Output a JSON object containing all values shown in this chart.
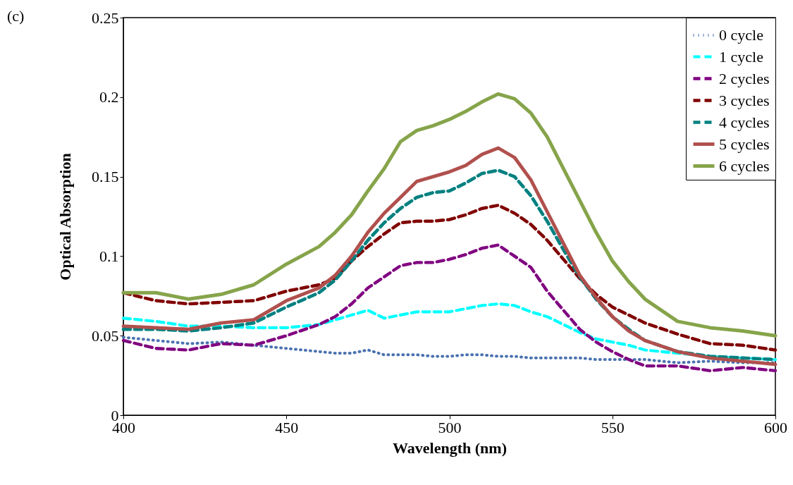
{
  "chart_data": {
    "type": "line",
    "xlabel": "Wavelength (nm)",
    "ylabel": "Optical Absorption",
    "annotations": [
      "(c)"
    ],
    "x": [
      400,
      410,
      420,
      430,
      440,
      450,
      460,
      465,
      470,
      475,
      480,
      485,
      490,
      495,
      500,
      505,
      510,
      515,
      520,
      525,
      530,
      535,
      540,
      545,
      550,
      555,
      560,
      570,
      580,
      590,
      600
    ],
    "series": [
      {
        "name": "0 cycle",
        "color": "#4a72b0",
        "line_style": "dotted",
        "values": [
          0.049,
          0.047,
          0.045,
          0.046,
          0.044,
          0.042,
          0.04,
          0.039,
          0.039,
          0.041,
          0.038,
          0.038,
          0.038,
          0.037,
          0.037,
          0.038,
          0.038,
          0.037,
          0.037,
          0.036,
          0.036,
          0.036,
          0.036,
          0.035,
          0.035,
          0.035,
          0.035,
          0.033,
          0.034,
          0.033,
          0.033
        ]
      },
      {
        "name": "1 cycle",
        "color": "#00ffff",
        "line_style": "dashed",
        "values": [
          0.061,
          0.059,
          0.056,
          0.056,
          0.055,
          0.055,
          0.057,
          0.06,
          0.063,
          0.066,
          0.061,
          0.063,
          0.065,
          0.065,
          0.065,
          0.067,
          0.069,
          0.07,
          0.069,
          0.065,
          0.062,
          0.057,
          0.052,
          0.048,
          0.046,
          0.044,
          0.041,
          0.039,
          0.037,
          0.036,
          0.035
        ]
      },
      {
        "name": "2 cycles",
        "color": "#800080",
        "line_style": "dashed",
        "values": [
          0.047,
          0.042,
          0.041,
          0.045,
          0.044,
          0.05,
          0.057,
          0.062,
          0.07,
          0.08,
          0.087,
          0.094,
          0.096,
          0.096,
          0.098,
          0.101,
          0.105,
          0.107,
          0.1,
          0.093,
          0.078,
          0.066,
          0.054,
          0.046,
          0.04,
          0.035,
          0.031,
          0.031,
          0.028,
          0.03,
          0.028
        ]
      },
      {
        "name": "3 cycles",
        "color": "#800000",
        "line_style": "dashed",
        "values": [
          0.077,
          0.072,
          0.07,
          0.071,
          0.072,
          0.078,
          0.082,
          0.086,
          0.097,
          0.106,
          0.114,
          0.121,
          0.122,
          0.122,
          0.123,
          0.126,
          0.13,
          0.132,
          0.127,
          0.12,
          0.11,
          0.098,
          0.086,
          0.076,
          0.068,
          0.063,
          0.058,
          0.051,
          0.045,
          0.044,
          0.041
        ]
      },
      {
        "name": "4 cycles",
        "color": "#008080",
        "line_style": "dashed",
        "values": [
          0.054,
          0.054,
          0.053,
          0.055,
          0.058,
          0.068,
          0.077,
          0.085,
          0.097,
          0.11,
          0.121,
          0.13,
          0.137,
          0.14,
          0.141,
          0.146,
          0.152,
          0.154,
          0.15,
          0.138,
          0.122,
          0.104,
          0.087,
          0.073,
          0.062,
          0.054,
          0.047,
          0.04,
          0.037,
          0.036,
          0.035
        ]
      },
      {
        "name": "5 cycles",
        "color": "#b0504d",
        "line_style": "solid",
        "values": [
          0.056,
          0.055,
          0.054,
          0.058,
          0.06,
          0.072,
          0.08,
          0.088,
          0.1,
          0.115,
          0.127,
          0.137,
          0.147,
          0.15,
          0.153,
          0.157,
          0.164,
          0.168,
          0.162,
          0.148,
          0.128,
          0.108,
          0.088,
          0.074,
          0.062,
          0.053,
          0.047,
          0.04,
          0.036,
          0.034,
          0.032
        ]
      },
      {
        "name": "6 cycles",
        "color": "#86a44a",
        "line_style": "solid",
        "values": [
          0.077,
          0.077,
          0.073,
          0.076,
          0.082,
          0.095,
          0.106,
          0.115,
          0.126,
          0.141,
          0.155,
          0.172,
          0.179,
          0.182,
          0.186,
          0.191,
          0.197,
          0.202,
          0.199,
          0.19,
          0.175,
          0.155,
          0.135,
          0.115,
          0.097,
          0.084,
          0.073,
          0.059,
          0.055,
          0.053,
          0.05
        ]
      }
    ],
    "xlim": [
      400,
      600
    ],
    "xticks": [
      400,
      450,
      500,
      550,
      600
    ],
    "ylim": [
      0,
      0.25
    ],
    "yticks": [
      0,
      0.05,
      0.1,
      0.15,
      0.2,
      0.25
    ],
    "grid": false,
    "legend": "top right"
  }
}
